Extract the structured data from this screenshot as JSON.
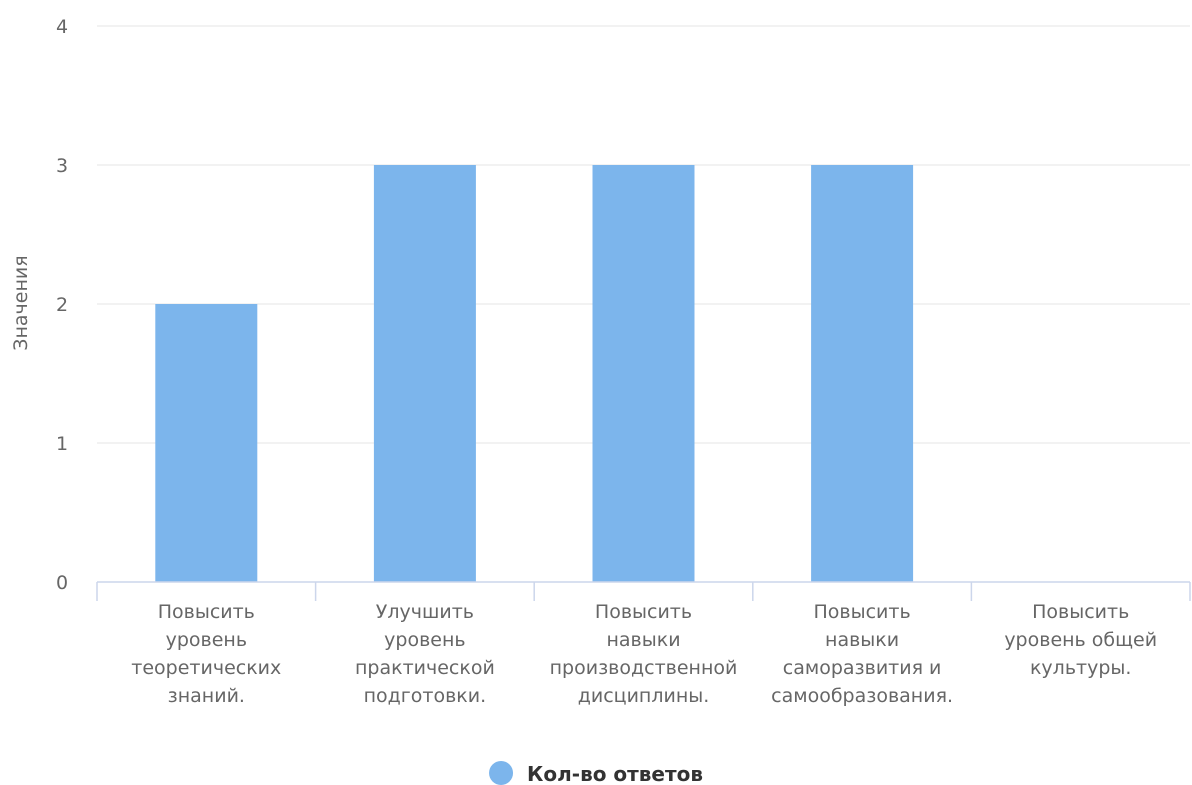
{
  "chart_data": {
    "type": "bar",
    "title": "",
    "xlabel": "",
    "ylabel": "Значения",
    "ylim": [
      0,
      4
    ],
    "yticks": [
      0,
      1,
      2,
      3,
      4
    ],
    "grid": true,
    "legend_position": "bottom-center",
    "categories": [
      [
        "Повысить",
        "уровень",
        "теоретических",
        "знаний."
      ],
      [
        "Улучшить",
        "уровень",
        "практической",
        "подготовки."
      ],
      [
        "Повысить",
        "навыки",
        "производственной",
        "дисциплины."
      ],
      [
        "Повысить",
        "навыки",
        "саморазвития и",
        "самообразования."
      ],
      [
        "Повысить",
        "уровень общей",
        "культуры."
      ]
    ],
    "series": [
      {
        "name": "Кол-во ответов",
        "color": "#7cb5ec",
        "values": [
          2,
          3,
          3,
          3,
          0
        ]
      }
    ]
  }
}
